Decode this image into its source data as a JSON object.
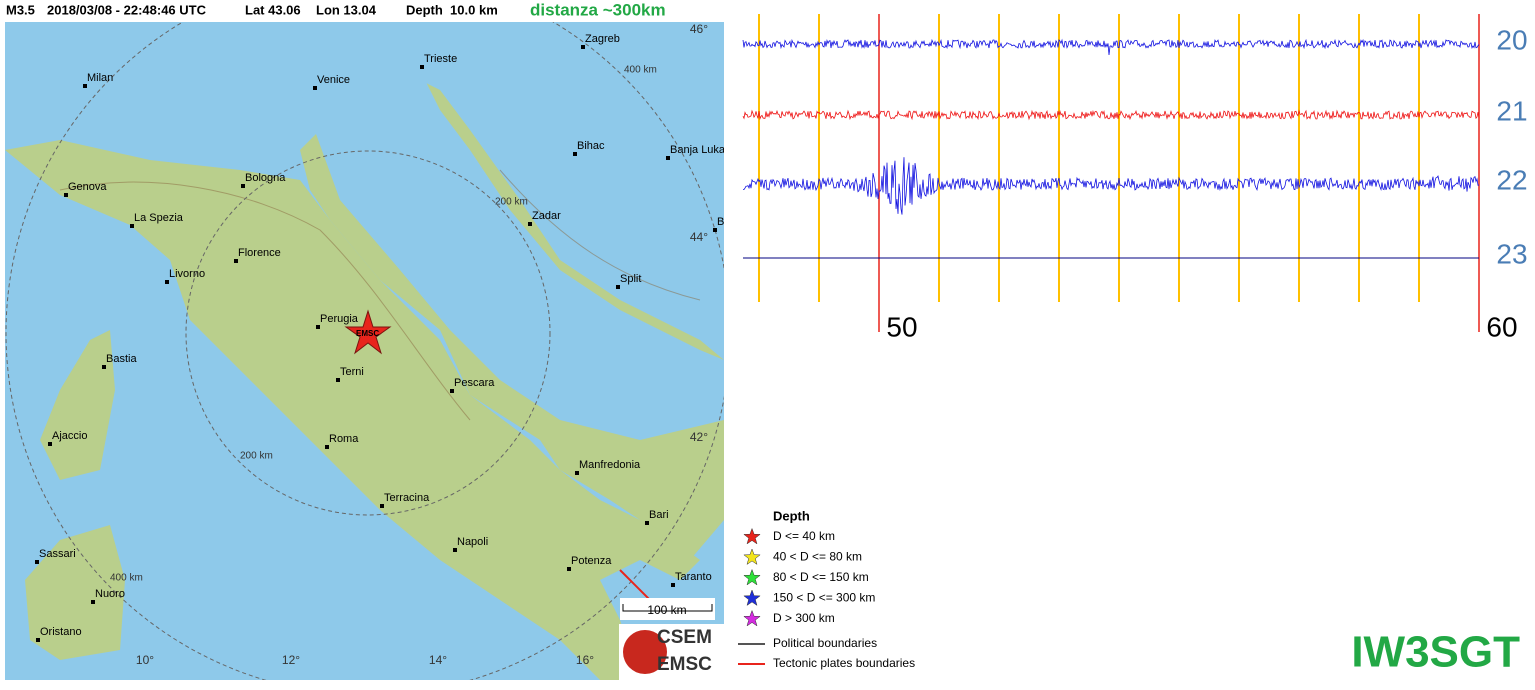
{
  "header": {
    "magnitude": "M3.5",
    "datetime": "2018/03/08 - 22:48:46 UTC",
    "lat": "Lat 43.06",
    "lon": "Lon 13.04",
    "depth": "Depth  10.0 km",
    "distance": "distanza ~300km"
  },
  "map": {
    "cities": [
      "Zagreb",
      "Trieste",
      "Venice",
      "Milan",
      "Bihac",
      "Banja Luka",
      "Bologna",
      "Genova",
      "La Spezia",
      "Zadar",
      "Bugojno",
      "Florence",
      "Livorno",
      "Split",
      "Perugia",
      "Bastia",
      "Terni",
      "Pescara",
      "Ajaccio",
      "Roma",
      "Manfredonia",
      "Terracina",
      "Bari",
      "Napoli",
      "Sassari",
      "Potenza",
      "Taranto",
      "Nuoro",
      "Oristano"
    ],
    "lat_labels": [
      "46°",
      "44°",
      "42°"
    ],
    "lon_labels": [
      "10°",
      "12°",
      "14°",
      "16°"
    ],
    "ring_labels": [
      "400 km",
      "200 km",
      "200 km",
      "400 km"
    ],
    "epicenter_label": "EMSC",
    "scale": "100 km",
    "logo": [
      "CSEM",
      "EMSC"
    ]
  },
  "legend": {
    "title": "Depth",
    "items": [
      {
        "label": "D <= 40 km",
        "color": "#e8241c"
      },
      {
        "label": "40 < D <= 80 km",
        "color": "#f2e41c"
      },
      {
        "label": "80 < D <= 150 km",
        "color": "#2fe03a"
      },
      {
        "label": "150 < D <= 300 km",
        "color": "#1f2fd8"
      },
      {
        "label": "D > 300 km",
        "color": "#d42be0"
      }
    ],
    "lines": [
      {
        "label": "Political boundaries",
        "color": "#555555"
      },
      {
        "label": "Tectonic plates boundaries",
        "color": "#e8241c"
      }
    ]
  },
  "seismogram": {
    "hours": [
      "20",
      "21",
      "22",
      "23"
    ],
    "trace_colors": [
      "#1010e0",
      "#ee1010",
      "#1010e0",
      "#000080"
    ],
    "minutes": [
      "50",
      "60"
    ]
  },
  "signature": "IW3SGT"
}
